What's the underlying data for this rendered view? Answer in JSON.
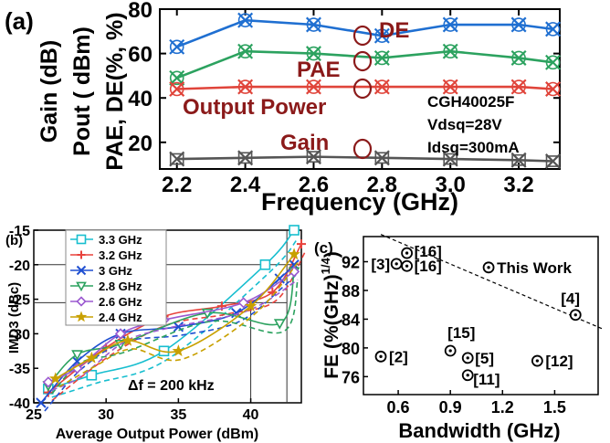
{
  "chart_data": [
    {
      "panel_label": "(a)",
      "type": "line",
      "xlabel": "Frequency (GHz)",
      "ylabel_lines": [
        "Gain (dB)",
        "Pout ( dBm)",
        "PAE, DE(%, %)"
      ],
      "xlim": [
        2.15,
        3.32
      ],
      "ylim": [
        8,
        80
      ],
      "xticks": [
        "2.2",
        "2.4",
        "2.6",
        "2.8",
        "3.0",
        "3.2"
      ],
      "yticks": [
        "20",
        "40",
        "60",
        "80"
      ],
      "x": [
        2.2,
        2.4,
        2.6,
        2.8,
        3.0,
        3.2,
        3.3
      ],
      "series": [
        {
          "label": "DE",
          "color": "#1f6fd1",
          "marker": "x-circle",
          "values": [
            63,
            75,
            73,
            68,
            73,
            73,
            71
          ]
        },
        {
          "label": "PAE",
          "color": "#2ca25f",
          "marker": "x-circle",
          "values": [
            49,
            61,
            60,
            58,
            61,
            58,
            56
          ]
        },
        {
          "label": "Output Power",
          "color": "#e0443a",
          "marker": "x-circle",
          "values": [
            44,
            45,
            45,
            45,
            45,
            45,
            44
          ]
        },
        {
          "label": "Gain",
          "color": "#555555",
          "marker": "x-square",
          "values": [
            12.5,
            13,
            13.5,
            13,
            12.5,
            12,
            11.5
          ]
        }
      ],
      "annotations": [
        "CGH40025F",
        "Vdsq=28V",
        "Idsq=300mA"
      ],
      "label_color": "#8b1a1a"
    },
    {
      "panel_label": "(b)",
      "type": "line",
      "xlabel": "Average Output Power (dBm)",
      "ylabel": "IMD3 (dBc)",
      "xlim": [
        25,
        43.5
      ],
      "ylim": [
        -40,
        -15
      ],
      "xticks": [
        "25",
        "30",
        "35",
        "40"
      ],
      "yticks": [
        "-15",
        "-20",
        "-25",
        "-30",
        "-35",
        "-40"
      ],
      "annotation": "Δf = 200 kHz",
      "legend_position": "top-left",
      "series": [
        {
          "name": "3.3 GHz",
          "color": "#17becf",
          "marker": "square",
          "x": [
            26,
            29,
            34,
            41,
            43
          ],
          "y": [
            -38,
            -36,
            -32.5,
            -20,
            -15
          ]
        },
        {
          "name": "3.2 GHz",
          "color": "#e8423c",
          "marker": "plus",
          "x": [
            26,
            30,
            34,
            38,
            41.5,
            43.5
          ],
          "y": [
            -38.5,
            -32,
            -27.5,
            -26,
            -24,
            -17
          ]
        },
        {
          "name": "3 GHz",
          "color": "#1f4fd1",
          "marker": "x",
          "x": [
            25.5,
            28,
            31,
            35,
            39,
            42,
            43
          ],
          "y": [
            -40,
            -34,
            -30,
            -29,
            -27,
            -22,
            -20
          ]
        },
        {
          "name": "2.8 GHz",
          "color": "#2ca25f",
          "marker": "triangle-down",
          "x": [
            26,
            28,
            31,
            37,
            42,
            43
          ],
          "y": [
            -37.5,
            -33,
            -31.5,
            -27,
            -28.5,
            -21
          ]
        },
        {
          "name": "2.6 GHz",
          "color": "#9b59d0",
          "marker": "diamond",
          "x": [
            26,
            28,
            31,
            34,
            39.5,
            43
          ],
          "y": [
            -37,
            -35,
            -30,
            -28,
            -25.5,
            -21
          ]
        },
        {
          "name": "2.4 GHz",
          "color": "#c8a000",
          "marker": "star",
          "x": [
            26.5,
            29,
            31.5,
            35,
            40,
            43
          ],
          "y": [
            -36.5,
            -33.5,
            -31,
            -32.5,
            -26,
            -18.5
          ]
        }
      ]
    },
    {
      "panel_label": "(c)",
      "type": "scatter",
      "xlabel": "Bandwidth (GHz)",
      "ylabel": "FE (%(GHz)1/4)",
      "ylabel_main": "FE (%(GHz)",
      "ylabel_sup": "1/4",
      "ylabel_close": ")",
      "xlim": [
        0.4,
        1.75
      ],
      "ylim": [
        73.5,
        95.5
      ],
      "xticks": [
        "0.6",
        "0.9",
        "1.2",
        "1.5"
      ],
      "yticks": [
        "76",
        "80",
        "84",
        "88",
        "92"
      ],
      "points": [
        {
          "label": "[16]",
          "x": 0.65,
          "y": 93.2
        },
        {
          "label": "[3]",
          "x": 0.59,
          "y": 91.7
        },
        {
          "label": "[16]",
          "x": 0.65,
          "y": 91.4
        },
        {
          "label": "This Work",
          "x": 1.12,
          "y": 91.2
        },
        {
          "label": "[4]",
          "x": 1.62,
          "y": 84.6
        },
        {
          "label": "[15]",
          "x": 0.9,
          "y": 79.6
        },
        {
          "label": "[2]",
          "x": 0.5,
          "y": 78.8
        },
        {
          "label": "[5]",
          "x": 1.0,
          "y": 78.6
        },
        {
          "label": "[11]",
          "x": 1.0,
          "y": 76.2
        },
        {
          "label": "[12]",
          "x": 1.4,
          "y": 78.2
        }
      ],
      "trendline": {
        "x": [
          0.5,
          1.78
        ],
        "y": [
          95.8,
          82.6
        ]
      }
    }
  ]
}
